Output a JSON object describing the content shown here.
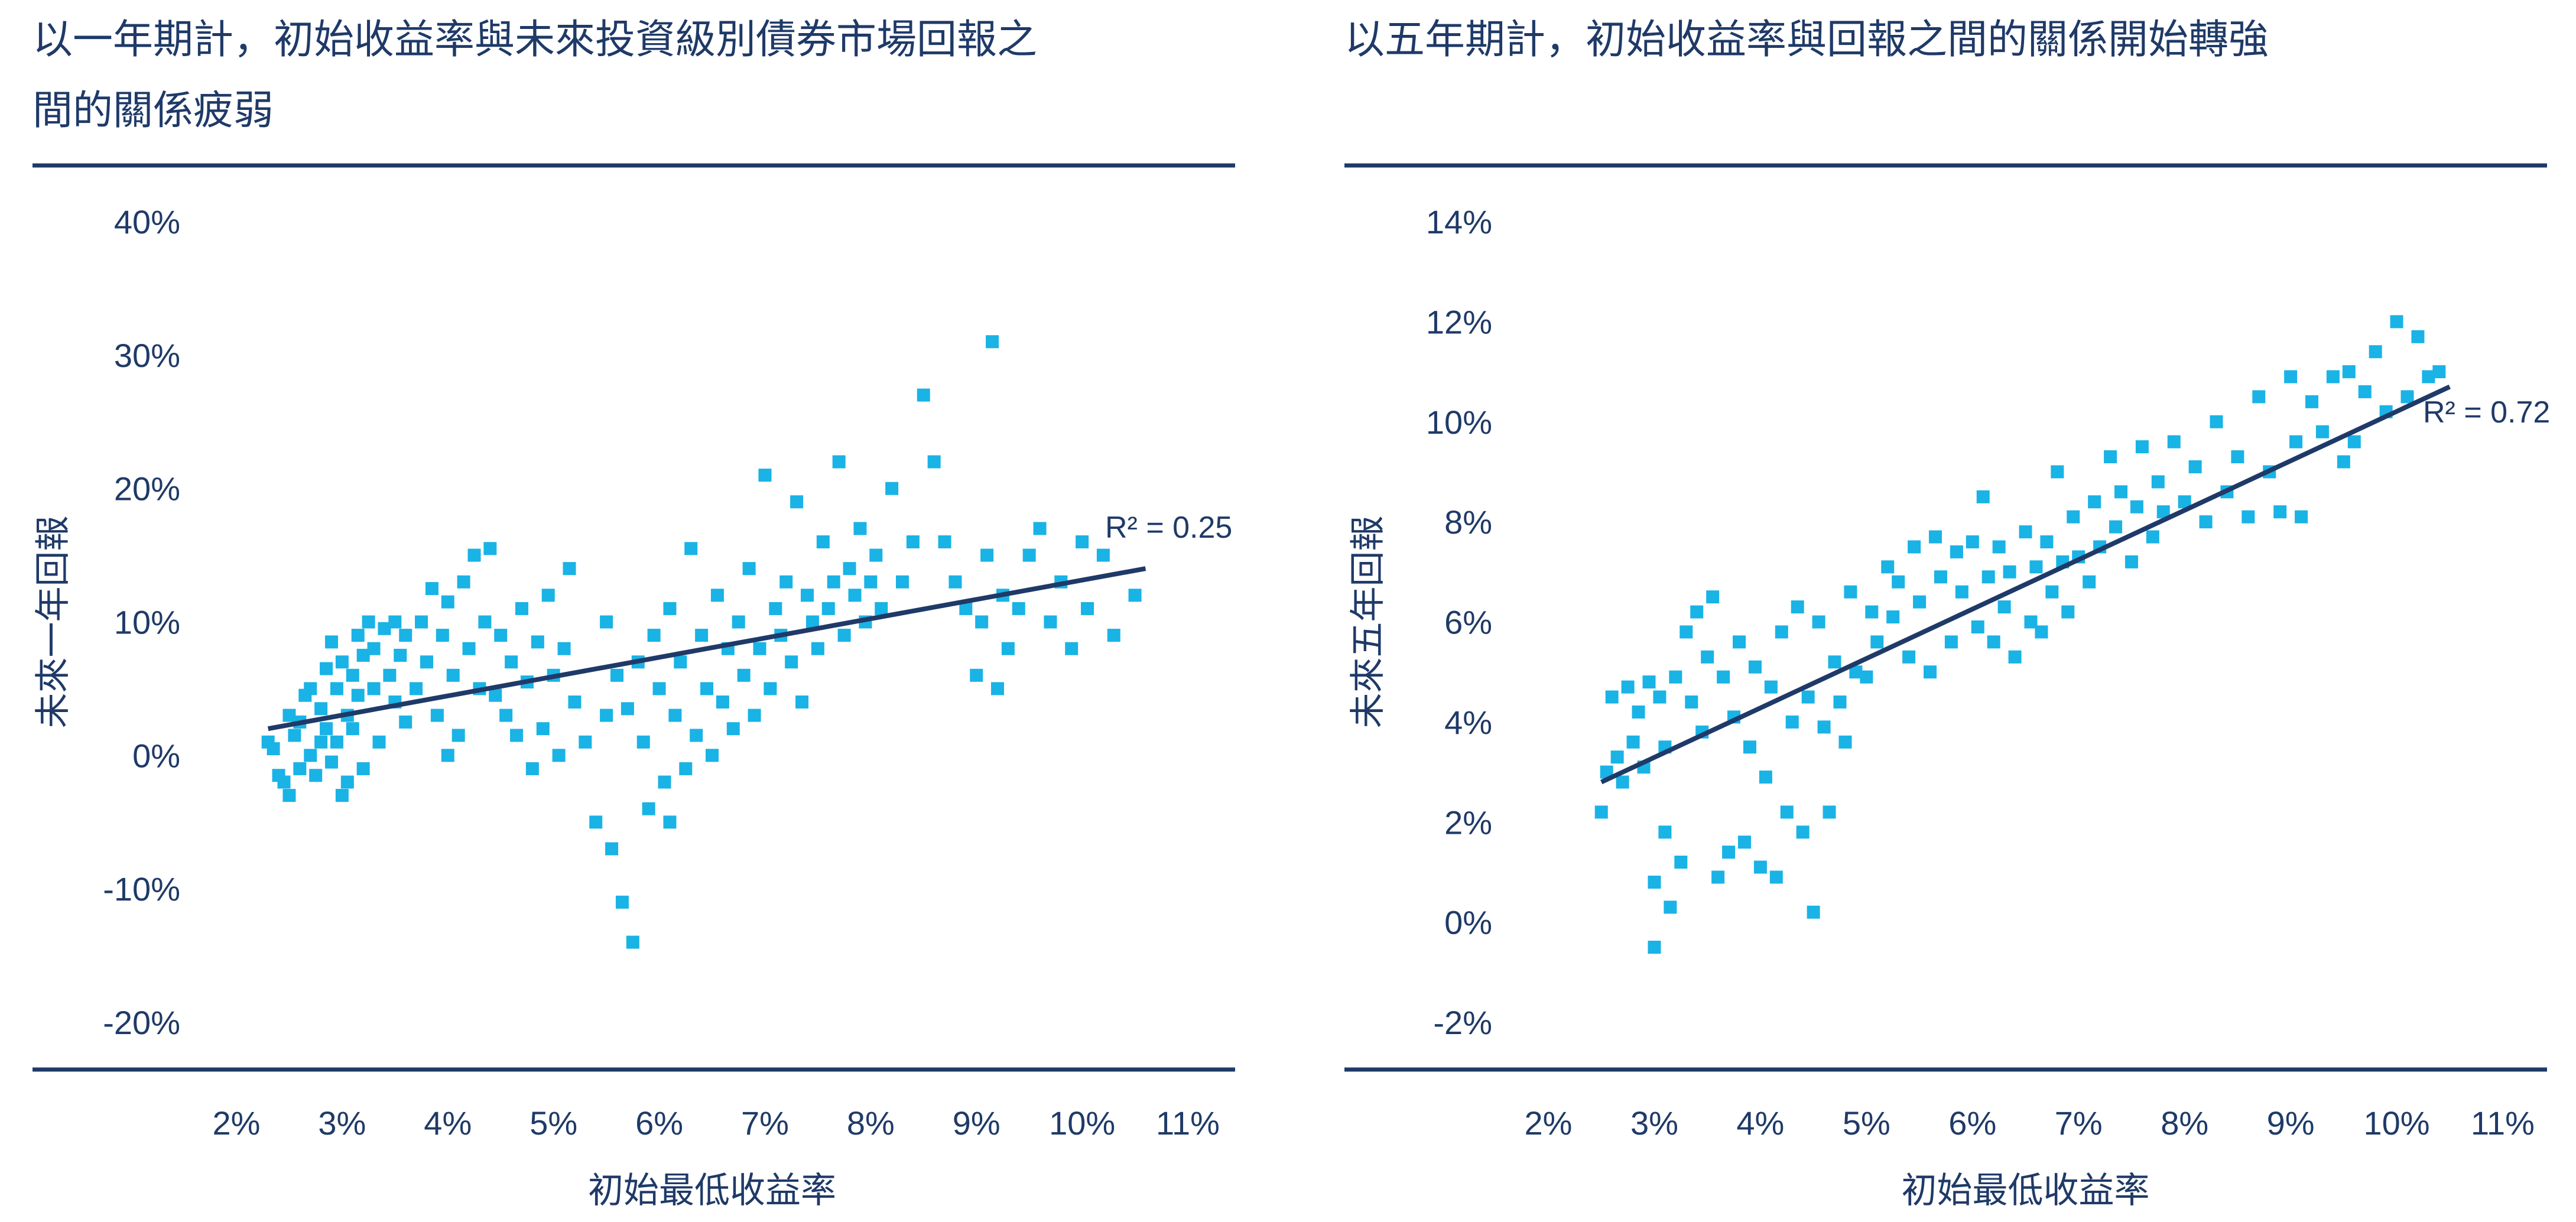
{
  "chart_data": [
    {
      "type": "scatter",
      "title": "以一年期計，初始收益率與未來投資級別債券市場回報之間的關係疲弱",
      "title_lines": [
        "以一年期計，初始收益率與未來投資級別債券市場回報之",
        "間的關係疲弱"
      ],
      "xlabel": "初始最低收益率",
      "ylabel": "未來一年回報",
      "xlim": [
        2,
        11
      ],
      "ylim": [
        -20,
        40
      ],
      "xticks": [
        "2%",
        "3%",
        "4%",
        "5%",
        "6%",
        "7%",
        "8%",
        "9%",
        "10%",
        "11%"
      ],
      "yticks": [
        "40%",
        "30%",
        "20%",
        "10%",
        "0%",
        "-10%",
        "-20%"
      ],
      "trendline": {
        "x": [
          2.3,
          10.6
        ],
        "y": [
          2,
          14
        ]
      },
      "r2_label": "R² = 0.25",
      "grid": false,
      "legend": "none",
      "point_color": "#19b3e6",
      "line_color": "#1f3a68",
      "points": [
        [
          2.3,
          1
        ],
        [
          2.35,
          0.5
        ],
        [
          2.4,
          -1.5
        ],
        [
          2.45,
          -2
        ],
        [
          2.5,
          3
        ],
        [
          2.5,
          -3
        ],
        [
          2.55,
          1.5
        ],
        [
          2.6,
          -1
        ],
        [
          2.6,
          2.5
        ],
        [
          2.65,
          4.5
        ],
        [
          2.7,
          5
        ],
        [
          2.7,
          0
        ],
        [
          2.75,
          -1.5
        ],
        [
          2.8,
          1
        ],
        [
          2.8,
          3.5
        ],
        [
          2.85,
          6.5
        ],
        [
          2.85,
          2
        ],
        [
          2.9,
          8.5
        ],
        [
          2.9,
          -0.5
        ],
        [
          2.95,
          5
        ],
        [
          2.95,
          1
        ],
        [
          3.0,
          -3
        ],
        [
          3.0,
          7
        ],
        [
          3.05,
          3
        ],
        [
          3.05,
          -2
        ],
        [
          3.1,
          6
        ],
        [
          3.1,
          2
        ],
        [
          3.15,
          9
        ],
        [
          3.15,
          4.5
        ],
        [
          3.2,
          7.5
        ],
        [
          3.2,
          -1
        ],
        [
          3.25,
          10
        ],
        [
          3.3,
          5
        ],
        [
          3.3,
          8
        ],
        [
          3.35,
          1
        ],
        [
          3.4,
          9.5
        ],
        [
          3.45,
          6
        ],
        [
          3.5,
          4
        ],
        [
          3.5,
          10
        ],
        [
          3.55,
          7.5
        ],
        [
          3.6,
          2.5
        ],
        [
          3.6,
          9
        ],
        [
          3.7,
          5
        ],
        [
          3.75,
          10
        ],
        [
          3.8,
          7
        ],
        [
          3.85,
          12.5
        ],
        [
          3.9,
          3
        ],
        [
          3.95,
          9
        ],
        [
          4.0,
          11.5
        ],
        [
          4.0,
          0
        ],
        [
          4.05,
          6
        ],
        [
          4.1,
          1.5
        ],
        [
          4.15,
          13
        ],
        [
          4.2,
          8
        ],
        [
          4.25,
          15
        ],
        [
          4.3,
          5
        ],
        [
          4.35,
          10
        ],
        [
          4.4,
          15.5
        ],
        [
          4.45,
          4.5
        ],
        [
          4.5,
          9
        ],
        [
          4.55,
          3
        ],
        [
          4.6,
          7
        ],
        [
          4.65,
          1.5
        ],
        [
          4.7,
          11
        ],
        [
          4.75,
          5.5
        ],
        [
          4.8,
          -1
        ],
        [
          4.85,
          8.5
        ],
        [
          4.9,
          2
        ],
        [
          4.95,
          12
        ],
        [
          5.0,
          6
        ],
        [
          5.05,
          0
        ],
        [
          5.1,
          8
        ],
        [
          5.15,
          14
        ],
        [
          5.2,
          4
        ],
        [
          5.3,
          1
        ],
        [
          5.4,
          -5
        ],
        [
          5.5,
          3
        ],
        [
          5.5,
          10
        ],
        [
          5.55,
          -7
        ],
        [
          5.6,
          6
        ],
        [
          5.65,
          -11
        ],
        [
          5.7,
          3.5
        ],
        [
          5.75,
          -14
        ],
        [
          5.8,
          7
        ],
        [
          5.85,
          1
        ],
        [
          5.9,
          -4
        ],
        [
          5.95,
          9
        ],
        [
          6.0,
          5
        ],
        [
          6.05,
          -2
        ],
        [
          6.1,
          11
        ],
        [
          6.1,
          -5
        ],
        [
          6.15,
          3
        ],
        [
          6.2,
          7
        ],
        [
          6.25,
          -1
        ],
        [
          6.3,
          15.5
        ],
        [
          6.35,
          1.5
        ],
        [
          6.4,
          9
        ],
        [
          6.45,
          5
        ],
        [
          6.5,
          0
        ],
        [
          6.55,
          12
        ],
        [
          6.6,
          4
        ],
        [
          6.65,
          8
        ],
        [
          6.7,
          2
        ],
        [
          6.75,
          10
        ],
        [
          6.8,
          6
        ],
        [
          6.85,
          14
        ],
        [
          6.9,
          3
        ],
        [
          6.95,
          8
        ],
        [
          7.0,
          21
        ],
        [
          7.05,
          5
        ],
        [
          7.1,
          11
        ],
        [
          7.15,
          9
        ],
        [
          7.2,
          13
        ],
        [
          7.25,
          7
        ],
        [
          7.3,
          19
        ],
        [
          7.35,
          4
        ],
        [
          7.4,
          12
        ],
        [
          7.45,
          10
        ],
        [
          7.5,
          8
        ],
        [
          7.55,
          16
        ],
        [
          7.6,
          11
        ],
        [
          7.65,
          13
        ],
        [
          7.7,
          22
        ],
        [
          7.75,
          9
        ],
        [
          7.8,
          14
        ],
        [
          7.85,
          12
        ],
        [
          7.9,
          17
        ],
        [
          7.95,
          10
        ],
        [
          8.0,
          13
        ],
        [
          8.05,
          15
        ],
        [
          8.1,
          11
        ],
        [
          8.2,
          20
        ],
        [
          8.3,
          13
        ],
        [
          8.4,
          16
        ],
        [
          8.5,
          27
        ],
        [
          8.6,
          22
        ],
        [
          8.7,
          16
        ],
        [
          8.8,
          13
        ],
        [
          8.9,
          11
        ],
        [
          9.0,
          6
        ],
        [
          9.05,
          10
        ],
        [
          9.1,
          15
        ],
        [
          9.15,
          31
        ],
        [
          9.2,
          5
        ],
        [
          9.25,
          12
        ],
        [
          9.3,
          8
        ],
        [
          9.4,
          11
        ],
        [
          9.5,
          15
        ],
        [
          9.6,
          17
        ],
        [
          9.7,
          10
        ],
        [
          9.8,
          13
        ],
        [
          9.9,
          8
        ],
        [
          10.0,
          16
        ],
        [
          10.05,
          11
        ],
        [
          10.2,
          15
        ],
        [
          10.3,
          9
        ],
        [
          10.5,
          12
        ]
      ]
    },
    {
      "type": "scatter",
      "title": "以五年期計，初始收益率與回報之間的關係開始轉強",
      "title_lines": [
        "以五年期計，初始收益率與回報之間的關係開始轉強"
      ],
      "xlabel": "初始最低收益率",
      "ylabel": "未來五年回報",
      "xlim": [
        2,
        11
      ],
      "ylim": [
        -2,
        14
      ],
      "xticks": [
        "2%",
        "3%",
        "4%",
        "5%",
        "6%",
        "7%",
        "8%",
        "9%",
        "10%",
        "11%"
      ],
      "yticks": [
        "14%",
        "12%",
        "10%",
        "8%",
        "6%",
        "4%",
        "2%",
        "0%",
        "-2%"
      ],
      "trendline": {
        "x": [
          2.5,
          10.5
        ],
        "y": [
          2.8,
          10.7
        ]
      },
      "r2_label": "R² = 0.72",
      "grid": false,
      "legend": "none",
      "point_color": "#19b3e6",
      "line_color": "#1f3a68",
      "points": [
        [
          2.5,
          2.2
        ],
        [
          2.55,
          3
        ],
        [
          2.6,
          4.5
        ],
        [
          2.65,
          3.3
        ],
        [
          2.7,
          2.8
        ],
        [
          2.75,
          4.7
        ],
        [
          2.8,
          3.6
        ],
        [
          2.85,
          4.2
        ],
        [
          2.9,
          3.1
        ],
        [
          2.95,
          4.8
        ],
        [
          3.0,
          0.8
        ],
        [
          3.0,
          -0.5
        ],
        [
          3.05,
          4.5
        ],
        [
          3.1,
          1.8
        ],
        [
          3.1,
          3.5
        ],
        [
          3.15,
          0.3
        ],
        [
          3.2,
          4.9
        ],
        [
          3.25,
          1.2
        ],
        [
          3.3,
          5.8
        ],
        [
          3.35,
          4.4
        ],
        [
          3.4,
          6.2
        ],
        [
          3.45,
          3.8
        ],
        [
          3.5,
          5.3
        ],
        [
          3.55,
          6.5
        ],
        [
          3.6,
          0.9
        ],
        [
          3.65,
          4.9
        ],
        [
          3.7,
          1.4
        ],
        [
          3.75,
          4.1
        ],
        [
          3.8,
          5.6
        ],
        [
          3.85,
          1.6
        ],
        [
          3.9,
          3.5
        ],
        [
          3.95,
          5.1
        ],
        [
          4.0,
          1.1
        ],
        [
          4.05,
          2.9
        ],
        [
          4.1,
          4.7
        ],
        [
          4.15,
          0.9
        ],
        [
          4.2,
          5.8
        ],
        [
          4.25,
          2.2
        ],
        [
          4.3,
          4.0
        ],
        [
          4.35,
          6.3
        ],
        [
          4.4,
          1.8
        ],
        [
          4.45,
          4.5
        ],
        [
          4.5,
          0.2
        ],
        [
          4.55,
          6.0
        ],
        [
          4.6,
          3.9
        ],
        [
          4.65,
          2.2
        ],
        [
          4.7,
          5.2
        ],
        [
          4.75,
          4.4
        ],
        [
          4.8,
          3.6
        ],
        [
          4.85,
          6.6
        ],
        [
          4.9,
          5.0
        ],
        [
          5.0,
          4.9
        ],
        [
          5.05,
          6.2
        ],
        [
          5.1,
          5.6
        ],
        [
          5.2,
          7.1
        ],
        [
          5.25,
          6.1
        ],
        [
          5.3,
          6.8
        ],
        [
          5.4,
          5.3
        ],
        [
          5.45,
          7.5
        ],
        [
          5.5,
          6.4
        ],
        [
          5.6,
          5.0
        ],
        [
          5.65,
          7.7
        ],
        [
          5.7,
          6.9
        ],
        [
          5.8,
          5.6
        ],
        [
          5.85,
          7.4
        ],
        [
          5.9,
          6.6
        ],
        [
          6.0,
          7.6
        ],
        [
          6.05,
          5.9
        ],
        [
          6.1,
          8.5
        ],
        [
          6.15,
          6.9
        ],
        [
          6.2,
          5.6
        ],
        [
          6.25,
          7.5
        ],
        [
          6.3,
          6.3
        ],
        [
          6.35,
          7.0
        ],
        [
          6.4,
          5.3
        ],
        [
          6.5,
          7.8
        ],
        [
          6.55,
          6.0
        ],
        [
          6.6,
          7.1
        ],
        [
          6.65,
          5.8
        ],
        [
          6.7,
          7.6
        ],
        [
          6.75,
          6.6
        ],
        [
          6.8,
          9.0
        ],
        [
          6.85,
          7.2
        ],
        [
          6.9,
          6.2
        ],
        [
          6.95,
          8.1
        ],
        [
          7.0,
          7.3
        ],
        [
          7.1,
          6.8
        ],
        [
          7.15,
          8.4
        ],
        [
          7.2,
          7.5
        ],
        [
          7.3,
          9.3
        ],
        [
          7.35,
          7.9
        ],
        [
          7.4,
          8.6
        ],
        [
          7.5,
          7.2
        ],
        [
          7.55,
          8.3
        ],
        [
          7.6,
          9.5
        ],
        [
          7.7,
          7.7
        ],
        [
          7.75,
          8.8
        ],
        [
          7.8,
          8.2
        ],
        [
          7.9,
          9.6
        ],
        [
          8.0,
          8.4
        ],
        [
          8.1,
          9.1
        ],
        [
          8.2,
          8.0
        ],
        [
          8.3,
          10.0
        ],
        [
          8.4,
          8.6
        ],
        [
          8.5,
          9.3
        ],
        [
          8.6,
          8.1
        ],
        [
          8.7,
          10.5
        ],
        [
          8.8,
          9.0
        ],
        [
          8.9,
          8.2
        ],
        [
          9.0,
          10.9
        ],
        [
          9.05,
          9.6
        ],
        [
          9.1,
          8.1
        ],
        [
          9.2,
          10.4
        ],
        [
          9.3,
          9.8
        ],
        [
          9.4,
          10.9
        ],
        [
          9.5,
          9.2
        ],
        [
          9.55,
          11.0
        ],
        [
          9.6,
          9.6
        ],
        [
          9.7,
          10.6
        ],
        [
          9.8,
          11.4
        ],
        [
          9.9,
          10.2
        ],
        [
          10.0,
          12.0
        ],
        [
          10.1,
          10.5
        ],
        [
          10.2,
          11.7
        ],
        [
          10.3,
          10.9
        ],
        [
          10.4,
          11.0
        ]
      ]
    }
  ]
}
